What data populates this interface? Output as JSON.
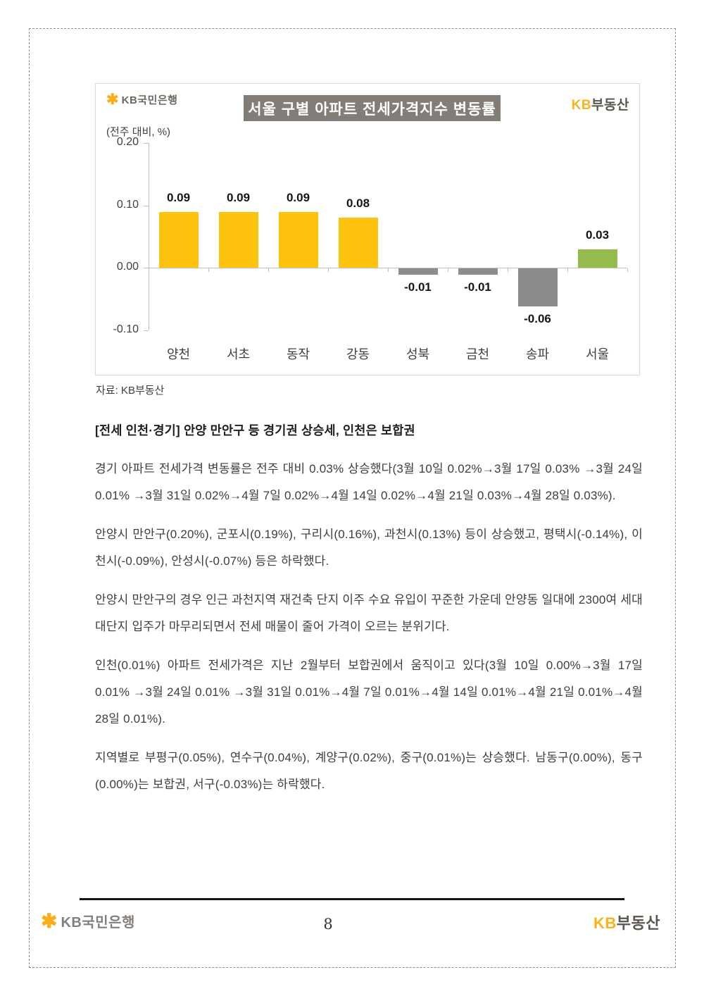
{
  "chart": {
    "brand_left": "KB국민은행",
    "brand_right_kb": "KB",
    "brand_right_rest": "부동산",
    "title": "서울 구별 아파트 전세가격지수 변동률",
    "unit_label": "(전주 대비, %)",
    "source": "자료: KB부동산",
    "chart_data": {
      "type": "bar",
      "title": "서울 구별 아파트 전세가격지수 변동률",
      "ylabel": "(전주 대비, %)",
      "categories": [
        "양천",
        "서초",
        "동작",
        "강동",
        "성북",
        "금천",
        "송파",
        "서울"
      ],
      "values": [
        0.09,
        0.09,
        0.09,
        0.08,
        -0.01,
        -0.01,
        -0.06,
        0.03
      ],
      "value_labels": [
        "0.09",
        "0.09",
        "0.09",
        "0.08",
        "-0.01",
        "-0.01",
        "-0.06",
        "0.03"
      ],
      "bar_colors": [
        "#FCC20E",
        "#FCC20E",
        "#FCC20E",
        "#FCC20E",
        "#8C8C8C",
        "#8C8C8C",
        "#8C8C8C",
        "#93BC4C"
      ],
      "ylim": [
        -0.1,
        0.2
      ],
      "yticks": [
        {
          "label": "0.20",
          "value": 0.2
        },
        {
          "label": "0.10",
          "value": 0.1
        },
        {
          "label": "0.00",
          "value": 0.0
        },
        {
          "label": "-0.10",
          "value": -0.1
        }
      ],
      "grid": false,
      "legend": "none"
    }
  },
  "body": {
    "heading": "[전세 인천·경기] 안양 만안구 등 경기권 상승세, 인천은 보합권",
    "paragraphs": [
      "경기 아파트 전세가격 변동률은 전주 대비 0.03% 상승했다(3월 10일 0.02%→3월 17일 0.03% →3월 24일 0.01% →3월 31일 0.02%→4월 7일 0.02%→4월 14일 0.02%→4월 21일 0.03%→4월 28일 0.03%).",
      "안양시 만안구(0.20%), 군포시(0.19%), 구리시(0.16%), 과천시(0.13%) 등이 상승했고, 평택시(-0.14%), 이천시(-0.09%), 안성시(-0.07%) 등은 하락했다.",
      "안양시 만안구의 경우 인근 과천지역 재건축 단지 이주 수요 유입이 꾸준한 가운데 안양동 일대에 2300여 세대 대단지 입주가 마무리되면서 전세 매물이 줄어 가격이 오르는 분위기다.",
      "인천(0.01%) 아파트 전세가격은 지난 2월부터 보합권에서 움직이고 있다(3월 10일 0.00%→3월 17일 0.01% →3월 24일 0.01% →3월 31일 0.01%→4월 7일 0.01%→4월 14일 0.01%→4월 21일 0.01%→4월 28일 0.01%).",
      "지역별로 부평구(0.05%), 연수구(0.04%), 계양구(0.02%), 중구(0.01%)는 상승했다. 남동구(0.00%), 동구(0.00%)는 보합권, 서구(-0.03%)는 하락했다."
    ]
  },
  "footer": {
    "brand_left": "KB국민은행",
    "page_number": "8",
    "brand_right_kb": "KB",
    "brand_right_rest": "부동산"
  },
  "icons": {
    "kb_star": "✱"
  },
  "colors": {
    "bar_yellow": "#FCC20E",
    "bar_gray": "#8C8C8C",
    "bar_green": "#93BC4C",
    "title_bg": "#827D77",
    "kb_orange": "#F9B31B",
    "axis_gray": "#BFBFBF"
  }
}
